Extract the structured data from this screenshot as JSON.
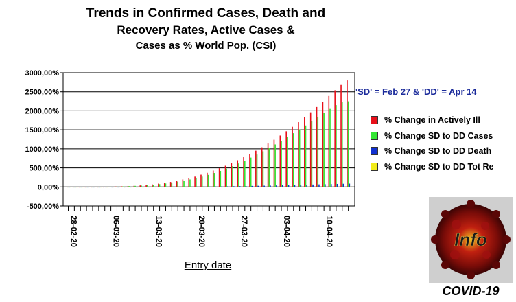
{
  "chart_data": {
    "type": "bar",
    "title": [
      "Trends in Confirmed Cases, Death and",
      "Recovery Rates, Active Cases &",
      "Cases as % World Pop. (CSI)"
    ],
    "xlabel": "Entry date",
    "ylabel": "",
    "ylim": [
      -500,
      3000
    ],
    "yticks": [
      -500,
      0,
      500,
      1000,
      1500,
      2000,
      2500,
      3000
    ],
    "ytick_labels": [
      "-500,00%",
      "0,00%",
      "500,00%",
      "1000,00%",
      "1500,00%",
      "2000,00%",
      "2500,00%",
      "3000,00%"
    ],
    "xtick_labels": [
      "28-02-20",
      "06-03-20",
      "13-03-20",
      "20-03-20",
      "27-03-20",
      "03-04-20",
      "10-04-20"
    ],
    "xtick_every": 7,
    "grid": "horizontal",
    "legend_position": "right",
    "annotation": "'SD' = Feb 27 & 'DD' = Apr 14",
    "categories": [
      "28-02-20",
      "29-02-20",
      "01-03-20",
      "02-03-20",
      "03-03-20",
      "04-03-20",
      "05-03-20",
      "06-03-20",
      "07-03-20",
      "08-03-20",
      "09-03-20",
      "10-03-20",
      "11-03-20",
      "12-03-20",
      "13-03-20",
      "14-03-20",
      "15-03-20",
      "16-03-20",
      "17-03-20",
      "18-03-20",
      "19-03-20",
      "20-03-20",
      "21-03-20",
      "22-03-20",
      "23-03-20",
      "24-03-20",
      "25-03-20",
      "26-03-20",
      "27-03-20",
      "28-03-20",
      "29-03-20",
      "30-03-20",
      "31-03-20",
      "01-04-20",
      "02-04-20",
      "03-04-20",
      "04-04-20",
      "05-04-20",
      "06-04-20",
      "07-04-20",
      "08-04-20",
      "09-04-20",
      "10-04-20",
      "11-04-20",
      "12-04-20",
      "13-04-20",
      "14-04-20"
    ],
    "series": [
      {
        "name": "% Change in Actively Ill",
        "color": "#e8101a",
        "values": [
          -10,
          -8,
          -6,
          -5,
          -4,
          -2,
          0,
          5,
          10,
          15,
          20,
          28,
          38,
          50,
          65,
          85,
          105,
          130,
          160,
          195,
          230,
          270,
          320,
          370,
          430,
          490,
          555,
          625,
          700,
          780,
          865,
          950,
          1040,
          1140,
          1240,
          1350,
          1460,
          1580,
          1700,
          1830,
          1960,
          2100,
          2240,
          2390,
          2540,
          2680,
          2800
        ]
      },
      {
        "name": "% Change SD to DD Cases",
        "color": "#33e633",
        "values": [
          -5,
          -4,
          -3,
          -2,
          -1,
          0,
          2,
          6,
          10,
          14,
          20,
          27,
          35,
          45,
          57,
          72,
          90,
          110,
          135,
          163,
          195,
          230,
          270,
          315,
          365,
          420,
          480,
          545,
          615,
          690,
          770,
          850,
          935,
          1025,
          1115,
          1210,
          1310,
          1410,
          1510,
          1615,
          1720,
          1830,
          1940,
          2050,
          2150,
          2230,
          2250
        ]
      },
      {
        "name": "% Change SD to DD Death",
        "color": "#1030d0",
        "values": [
          0,
          0,
          0,
          0,
          0,
          0,
          0,
          0,
          0,
          0,
          0,
          1,
          1,
          1,
          2,
          2,
          3,
          3,
          4,
          5,
          6,
          7,
          8,
          10,
          12,
          14,
          16,
          18,
          20,
          23,
          26,
          29,
          32,
          35,
          38,
          42,
          46,
          50,
          54,
          58,
          62,
          66,
          70,
          74,
          78,
          82,
          86
        ]
      },
      {
        "name": "% Change SD to DD Tot Re",
        "color": "#f2ec1a",
        "values": [
          0,
          0,
          0,
          0,
          0,
          0,
          0,
          0,
          0,
          0,
          0,
          0,
          0,
          0,
          0,
          1,
          1,
          1,
          1,
          1,
          2,
          2,
          2,
          2,
          2,
          3,
          3,
          3,
          3,
          4,
          4,
          4,
          5,
          5,
          5,
          6,
          6,
          6,
          7,
          7,
          7,
          8,
          8,
          8,
          9,
          9,
          10
        ]
      }
    ]
  },
  "legend_labels": [
    "% Change in Actively Ill",
    "% Change SD to DD Cases",
    "% Change SD to DD Death",
    "% Change SD to DD Tot Re"
  ],
  "logo": {
    "text": "Info",
    "caption": "COVID-19"
  }
}
